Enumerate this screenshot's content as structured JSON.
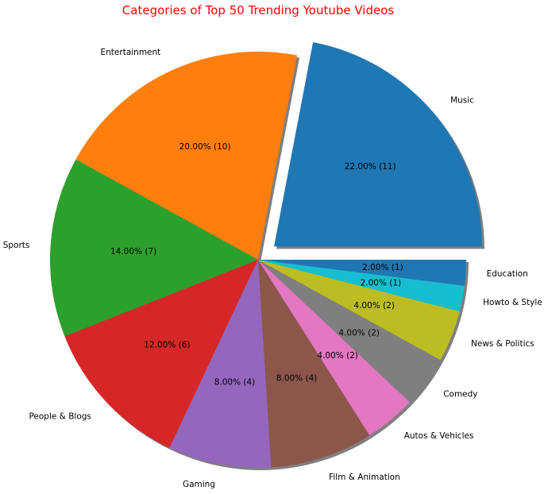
{
  "chart_data": {
    "type": "pie",
    "title": "Categories of Top 50 Trending Youtube Videos",
    "title_color": "#ff0000",
    "shadow": true,
    "exploded": [
      "Music"
    ],
    "start_angle_deg": 0,
    "direction": "counterclockwise",
    "slices": [
      {
        "label": "Music",
        "value": 11,
        "pct_text": "22.00%  (11)",
        "color": "#1f77b4"
      },
      {
        "label": "Entertainment",
        "value": 10,
        "pct_text": "20.00%  (10)",
        "color": "#ff7f0e"
      },
      {
        "label": "Sports",
        "value": 7,
        "pct_text": "14.00%  (7)",
        "color": "#2ca02c"
      },
      {
        "label": "People & Blogs",
        "value": 6,
        "pct_text": "12.00%  (6)",
        "color": "#d62728"
      },
      {
        "label": "Gaming",
        "value": 4,
        "pct_text": "8.00%  (4)",
        "color": "#9467bd"
      },
      {
        "label": "Film & Animation",
        "value": 4,
        "pct_text": "8.00%  (4)",
        "color": "#8c564b"
      },
      {
        "label": "Autos & Vehicles",
        "value": 2,
        "pct_text": "4.00%  (2)",
        "color": "#e377c2"
      },
      {
        "label": "Comedy",
        "value": 2,
        "pct_text": "4.00%  (2)",
        "color": "#7f7f7f"
      },
      {
        "label": "News & Politics",
        "value": 2,
        "pct_text": "4.00%  (2)",
        "color": "#bcbd22"
      },
      {
        "label": "Howto & Style",
        "value": 1,
        "pct_text": "2.00%  (1)",
        "color": "#17becf"
      },
      {
        "label": "Education",
        "value": 1,
        "pct_text": "2.00%  (1)",
        "color": "#1f77b4"
      }
    ]
  }
}
